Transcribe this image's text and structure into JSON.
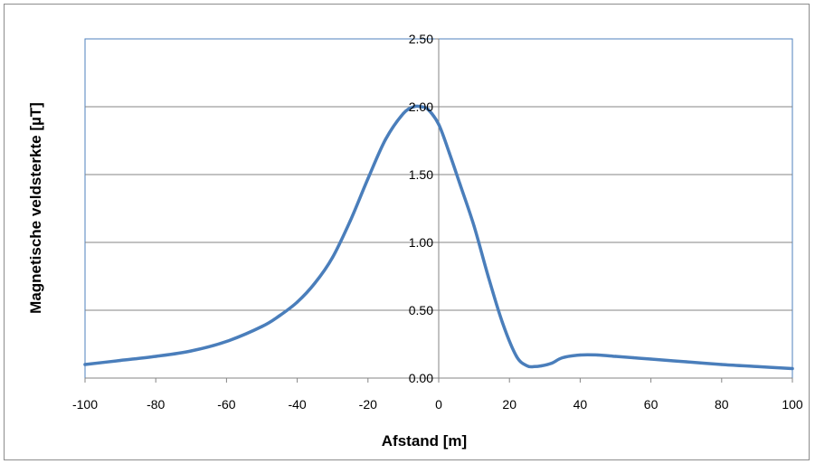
{
  "chart_data": {
    "type": "line",
    "title": "",
    "xlabel": "Afstand [m]",
    "ylabel": "Magnetische veldsterkte [µT]",
    "xlim": [
      -100,
      100
    ],
    "ylim": [
      0,
      2.5
    ],
    "x_ticks": [
      "-100",
      "-80",
      "-60",
      "-40",
      "-20",
      "0",
      "20",
      "40",
      "60",
      "80",
      "100"
    ],
    "y_ticks": [
      "0.00",
      "0.50",
      "1.00",
      "1.50",
      "2.00",
      "2.50"
    ],
    "grid": "horizontal",
    "legend": "none",
    "line_color": "#4a7ebb",
    "series": [
      {
        "x": [
          -100,
          -90,
          -80,
          -70,
          -60,
          -50,
          -45,
          -40,
          -35,
          -30,
          -25,
          -20,
          -15,
          -10,
          -7,
          -5,
          -3,
          0,
          3,
          6,
          10,
          14,
          18,
          22,
          25,
          27,
          29,
          32,
          35,
          40,
          45,
          50,
          55,
          60,
          70,
          80,
          90,
          100
        ],
        "y": [
          0.1,
          0.13,
          0.16,
          0.2,
          0.27,
          0.38,
          0.46,
          0.56,
          0.7,
          0.89,
          1.16,
          1.47,
          1.76,
          1.95,
          2.0,
          2.0,
          1.98,
          1.87,
          1.66,
          1.43,
          1.12,
          0.75,
          0.41,
          0.16,
          0.09,
          0.085,
          0.09,
          0.11,
          0.15,
          0.17,
          0.17,
          0.16,
          0.15,
          0.14,
          0.12,
          0.1,
          0.085,
          0.07
        ]
      }
    ]
  }
}
